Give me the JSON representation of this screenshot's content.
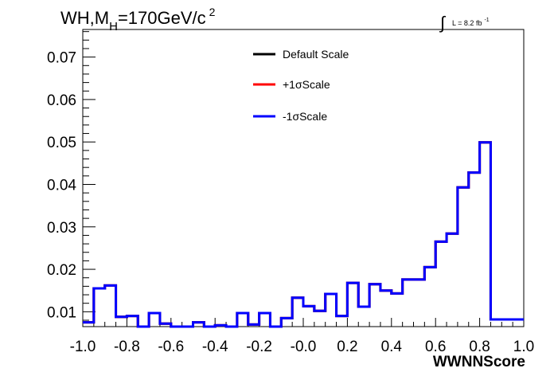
{
  "chart_data": {
    "type": "histogram-step",
    "title": {
      "prefix": "WH,M",
      "subscript": "H",
      "value": "=170GeV/c",
      "superscript": "2"
    },
    "luminosity": {
      "symbol": "∫",
      "text": "L = 8.2 fb",
      "superscript": "-1"
    },
    "xlabel": "WWNNScore",
    "ylabel": "",
    "xlim": [
      -1.0,
      1.0
    ],
    "ylim": [
      0.0065,
      0.0765
    ],
    "x_ticks": [
      "-1.0",
      "-0.8",
      "-0.6",
      "-0.4",
      "-0.2",
      "-0.0",
      "0.2",
      "0.4",
      "0.6",
      "0.8",
      "1.0"
    ],
    "y_ticks": [
      "0.01",
      "0.02",
      "0.03",
      "0.04",
      "0.05",
      "0.06",
      "0.07"
    ],
    "grid": false,
    "legend_position": "top-center",
    "bins": {
      "start": -1.0,
      "width": 0.05,
      "count": 40
    },
    "series": [
      {
        "name": "Default Scale",
        "color": "#000000",
        "values": [
          0.0075,
          0.0155,
          0.0162,
          0.0088,
          0.009,
          0.0065,
          0.0097,
          0.0072,
          0.0065,
          0.0065,
          0.0075,
          0.0065,
          0.0068,
          0.0065,
          0.0097,
          0.007,
          0.0097,
          0.0065,
          0.0085,
          0.0133,
          0.0113,
          0.0102,
          0.0142,
          0.009,
          0.0168,
          0.0112,
          0.0165,
          0.015,
          0.0143,
          0.0176,
          0.0176,
          0.0205,
          0.0265,
          0.0284,
          0.0393,
          0.0428,
          0.0499,
          0.0082,
          0.0082,
          0.0082
        ]
      },
      {
        "name": "+1σScale",
        "color": "#ff0000",
        "values": [
          0.0075,
          0.0155,
          0.0162,
          0.0088,
          0.009,
          0.0065,
          0.0097,
          0.0072,
          0.0065,
          0.0065,
          0.0075,
          0.0065,
          0.0068,
          0.0065,
          0.0097,
          0.007,
          0.0097,
          0.0065,
          0.0085,
          0.0133,
          0.0113,
          0.0102,
          0.0142,
          0.009,
          0.0168,
          0.0112,
          0.0165,
          0.015,
          0.0143,
          0.0176,
          0.0176,
          0.0205,
          0.0265,
          0.0284,
          0.0393,
          0.0428,
          0.0499,
          0.0082,
          0.0082,
          0.0082
        ]
      },
      {
        "name": "-1σScale",
        "color": "#0000ff",
        "values": [
          0.0075,
          0.0155,
          0.0162,
          0.0088,
          0.009,
          0.0065,
          0.0097,
          0.0072,
          0.0065,
          0.0065,
          0.0075,
          0.0065,
          0.0068,
          0.0065,
          0.0097,
          0.007,
          0.0097,
          0.0065,
          0.0085,
          0.0133,
          0.0113,
          0.0102,
          0.0142,
          0.009,
          0.0168,
          0.0112,
          0.0165,
          0.015,
          0.0143,
          0.0176,
          0.0176,
          0.0205,
          0.0265,
          0.0284,
          0.0393,
          0.0428,
          0.0499,
          0.0082,
          0.0082,
          0.0082
        ]
      }
    ]
  }
}
